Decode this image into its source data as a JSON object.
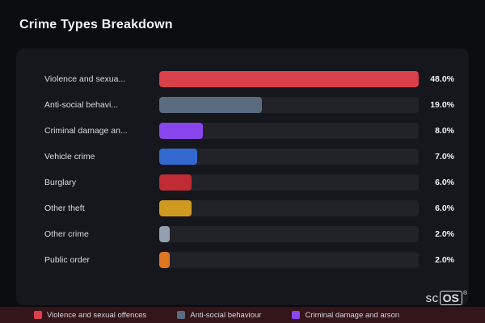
{
  "page_title": "Crime Types Breakdown",
  "chart_data": {
    "type": "bar",
    "orientation": "horizontal",
    "title": "Crime Types Breakdown",
    "max_value": 48,
    "categories": [
      "Violence and sexual offences",
      "Anti-social behaviour",
      "Criminal damage and arson",
      "Vehicle crime",
      "Burglary",
      "Other theft",
      "Other crime",
      "Public order"
    ],
    "labels_displayed": [
      "Violence and sexua...",
      "Anti-social behavi...",
      "Criminal damage an...",
      "Vehicle crime",
      "Burglary",
      "Other theft",
      "Other crime",
      "Public order"
    ],
    "values": [
      48,
      19,
      8,
      7,
      6,
      6,
      2,
      2
    ],
    "value_labels": [
      "48.0%",
      "19.0%",
      "8.0%",
      "7.0%",
      "6.0%",
      "6.0%",
      "2.0%",
      "2.0%"
    ],
    "bar_colors": [
      "#d9414a",
      "#5a6b80",
      "#8b45ef",
      "#3368cf",
      "#bf2c33",
      "#cf9a20",
      "#93a0b0",
      "#e07622"
    ]
  },
  "legend": {
    "items": [
      {
        "label": "Violence and sexual offences",
        "color": "#d9414a"
      },
      {
        "label": "Anti-social behaviour",
        "color": "#5a6b80"
      },
      {
        "label": "Criminal damage and arson",
        "color": "#8b45ef"
      }
    ]
  },
  "branding": {
    "prefix": "sc",
    "boxed": "OS",
    "registered": "®"
  },
  "colors": {
    "background": "#0b0c10",
    "card": "#16171c",
    "track": "#212329",
    "legend_strip": "#33151a"
  }
}
